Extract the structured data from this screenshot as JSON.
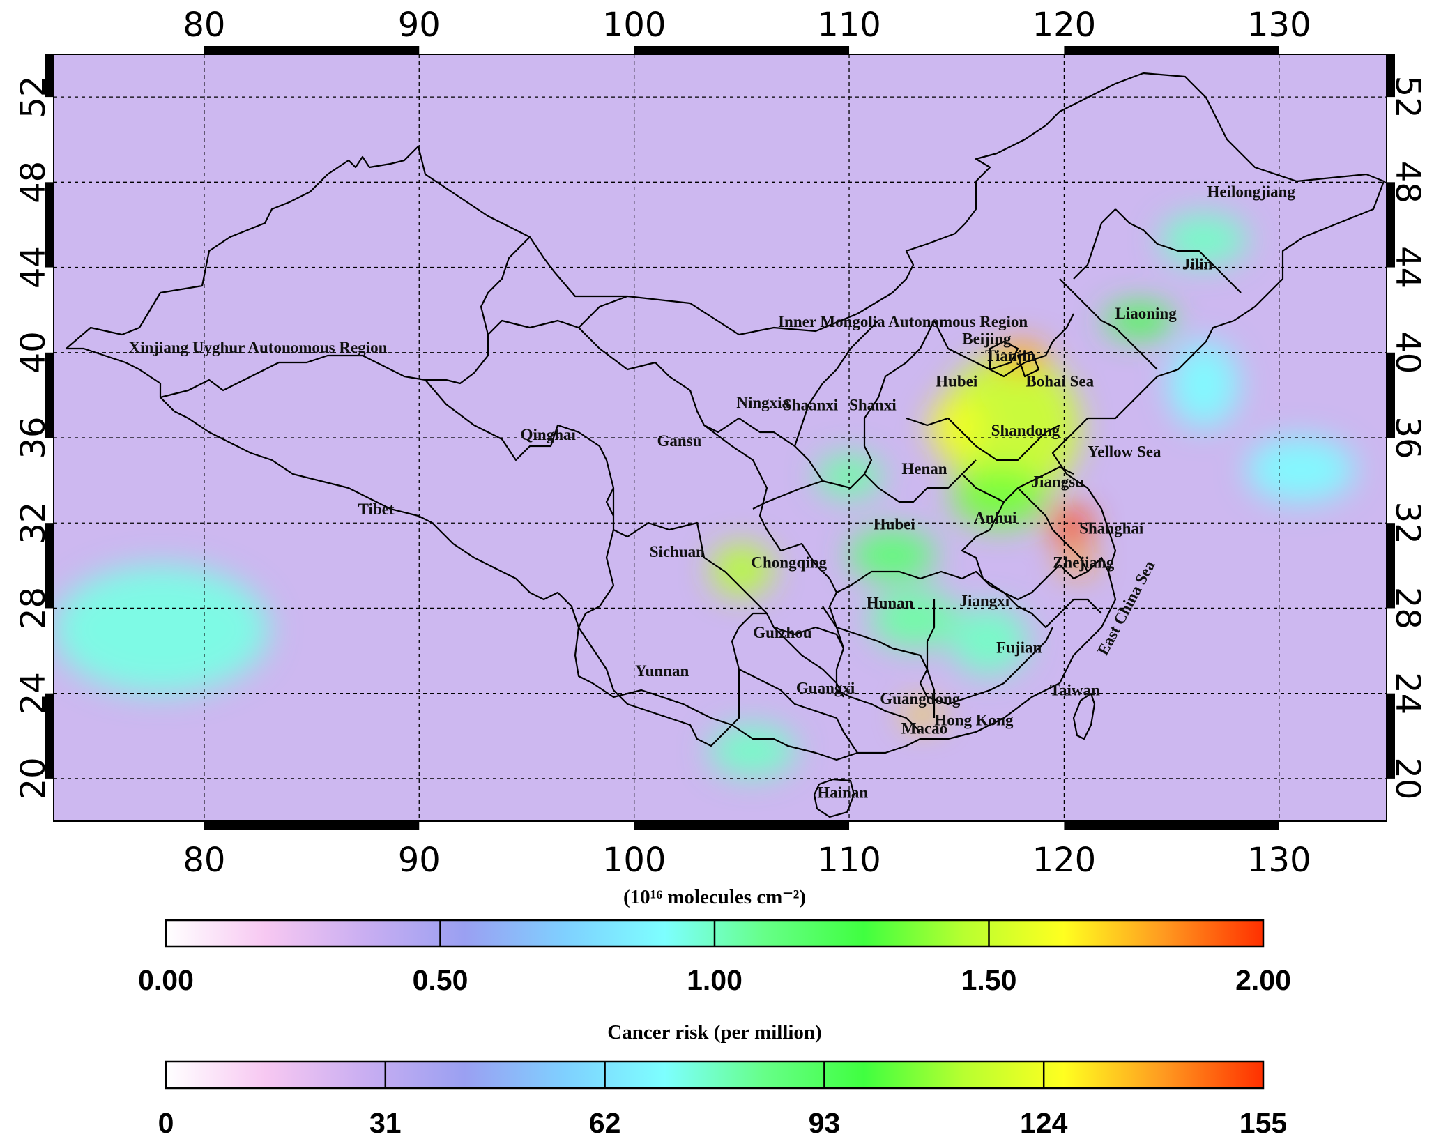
{
  "map": {
    "projection": "equirectangular",
    "lon_range": [
      73,
      135
    ],
    "lat_range": [
      18,
      54
    ],
    "lon_ticks": [
      "80",
      "90",
      "100",
      "110",
      "120",
      "130"
    ],
    "lat_ticks": [
      "20",
      "24",
      "28",
      "32",
      "36",
      "40",
      "44",
      "48",
      "52"
    ],
    "grid": "dashed",
    "background_color": "#cdb8f0",
    "labels": [
      {
        "text": "Xinjiang Uyghur Autonomous Region",
        "lon": 82.5,
        "lat": 40.0
      },
      {
        "text": "Inner Mongolia Autonomous Region",
        "lon": 112.5,
        "lat": 41.2
      },
      {
        "text": "Qinghai",
        "lon": 96.0,
        "lat": 35.9
      },
      {
        "text": "Tibet",
        "lon": 88.0,
        "lat": 32.4
      },
      {
        "text": "Gansu",
        "lon": 102.1,
        "lat": 35.6
      },
      {
        "text": "Ningxia",
        "lon": 106.0,
        "lat": 37.4
      },
      {
        "text": "Shaanxi",
        "lon": 108.2,
        "lat": 37.3
      },
      {
        "text": "Shanxi",
        "lon": 111.1,
        "lat": 37.3
      },
      {
        "text": "Beijing",
        "lon": 116.4,
        "lat": 40.4
      },
      {
        "text": "Tianjin",
        "lon": 117.5,
        "lat": 39.6
      },
      {
        "text": "Hubei",
        "lon": 115.0,
        "lat": 38.4
      },
      {
        "text": "Bohai Sea",
        "lon": 119.8,
        "lat": 38.4
      },
      {
        "text": "Liaoning",
        "lon": 123.8,
        "lat": 41.6
      },
      {
        "text": "Jilin",
        "lon": 126.2,
        "lat": 43.9
      },
      {
        "text": "Heilongjiang",
        "lon": 128.7,
        "lat": 47.3
      },
      {
        "text": "Shandong",
        "lon": 118.2,
        "lat": 36.1
      },
      {
        "text": "Yellow Sea",
        "lon": 122.8,
        "lat": 35.1
      },
      {
        "text": "Henan",
        "lon": 113.5,
        "lat": 34.3
      },
      {
        "text": "Jiangsu",
        "lon": 119.7,
        "lat": 33.7
      },
      {
        "text": "Anhui",
        "lon": 116.8,
        "lat": 32.0
      },
      {
        "text": "Hubei",
        "lon": 112.1,
        "lat": 31.7
      },
      {
        "text": "Shanghai",
        "lon": 122.2,
        "lat": 31.5
      },
      {
        "text": "Zhejiang",
        "lon": 120.9,
        "lat": 29.9
      },
      {
        "text": "Sichuan",
        "lon": 102.0,
        "lat": 30.4
      },
      {
        "text": "Chongqing",
        "lon": 107.2,
        "lat": 29.9
      },
      {
        "text": "Hunan",
        "lon": 111.9,
        "lat": 28.0
      },
      {
        "text": "Jiangxi",
        "lon": 116.3,
        "lat": 28.1
      },
      {
        "text": "Guizhou",
        "lon": 106.9,
        "lat": 26.6
      },
      {
        "text": "Fujian",
        "lon": 117.9,
        "lat": 25.9
      },
      {
        "text": "Yunnan",
        "lon": 101.3,
        "lat": 24.8
      },
      {
        "text": "Guangxi",
        "lon": 108.9,
        "lat": 24.0
      },
      {
        "text": "Guangdong",
        "lon": 113.3,
        "lat": 23.5
      },
      {
        "text": "Taiwan",
        "lon": 120.5,
        "lat": 23.9
      },
      {
        "text": "Hong Kong",
        "lon": 115.8,
        "lat": 22.5
      },
      {
        "text": "Macao",
        "lon": 113.5,
        "lat": 22.1
      },
      {
        "text": "Hainan",
        "lon": 109.7,
        "lat": 19.1
      },
      {
        "text": "East China Sea",
        "lon": 123.1,
        "lat": 27.9,
        "rotate": -62
      }
    ]
  },
  "colorbars": [
    {
      "title": "(10¹⁶ molecules cm⁻²)",
      "ticks": [
        "0.00",
        "0.50",
        "1.00",
        "1.50",
        "2.00"
      ],
      "range": [
        0,
        2
      ]
    },
    {
      "title": "Cancer risk (per million)",
      "ticks": [
        "0",
        "31",
        "62",
        "93",
        "124",
        "155"
      ],
      "range": [
        0,
        155
      ]
    }
  ],
  "colormap": [
    "#ffffff",
    "#f7c8f2",
    "#c9aef2",
    "#9aa0f2",
    "#7fd0ff",
    "#7dffff",
    "#66ff88",
    "#40ff40",
    "#b8ff30",
    "#ffff20",
    "#ff9a20",
    "#ff3000"
  ],
  "hotspots": [
    {
      "lon": 117.5,
      "lat": 36.5,
      "rx": 3.2,
      "ry": 3.4,
      "value": 1.5
    },
    {
      "lon": 118.0,
      "lat": 39.8,
      "rx": 1.2,
      "ry": 0.7,
      "value": 1.8
    },
    {
      "lon": 120.3,
      "lat": 31.9,
      "rx": 1.0,
      "ry": 0.8,
      "value": 1.95
    },
    {
      "lon": 120.6,
      "lat": 30.2,
      "rx": 0.8,
      "ry": 0.6,
      "value": 1.8
    },
    {
      "lon": 115.0,
      "lat": 36.5,
      "rx": 1.2,
      "ry": 1.4,
      "value": 1.6
    },
    {
      "lon": 117.0,
      "lat": 33.2,
      "rx": 2.2,
      "ry": 1.4,
      "value": 1.35
    },
    {
      "lon": 105.0,
      "lat": 29.8,
      "rx": 1.4,
      "ry": 1.2,
      "value": 1.45
    },
    {
      "lon": 113.4,
      "lat": 23.0,
      "rx": 0.9,
      "ry": 0.5,
      "value": 1.7
    },
    {
      "lon": 123.5,
      "lat": 41.5,
      "rx": 1.6,
      "ry": 0.8,
      "value": 1.25
    },
    {
      "lon": 112.0,
      "lat": 30.5,
      "rx": 2.0,
      "ry": 1.2,
      "value": 1.15
    },
    {
      "lon": 113.0,
      "lat": 27.5,
      "rx": 2.0,
      "ry": 1.4,
      "value": 1.05
    },
    {
      "lon": 116.5,
      "lat": 26.5,
      "rx": 1.8,
      "ry": 1.6,
      "value": 1.0
    },
    {
      "lon": 126.5,
      "lat": 45.3,
      "rx": 2.0,
      "ry": 1.2,
      "value": 1.0
    },
    {
      "lon": 110.0,
      "lat": 34.2,
      "rx": 1.5,
      "ry": 1.0,
      "value": 1.05
    },
    {
      "lon": 78.0,
      "lat": 27.0,
      "rx": 5.0,
      "ry": 3.0,
      "value": 0.95
    },
    {
      "lon": 131.0,
      "lat": 34.5,
      "rx": 2.5,
      "ry": 1.5,
      "value": 0.9
    },
    {
      "lon": 105.5,
      "lat": 21.3,
      "rx": 2.0,
      "ry": 1.2,
      "value": 1.0
    },
    {
      "lon": 126.5,
      "lat": 38.5,
      "rx": 1.6,
      "ry": 2.0,
      "value": 0.9
    }
  ]
}
